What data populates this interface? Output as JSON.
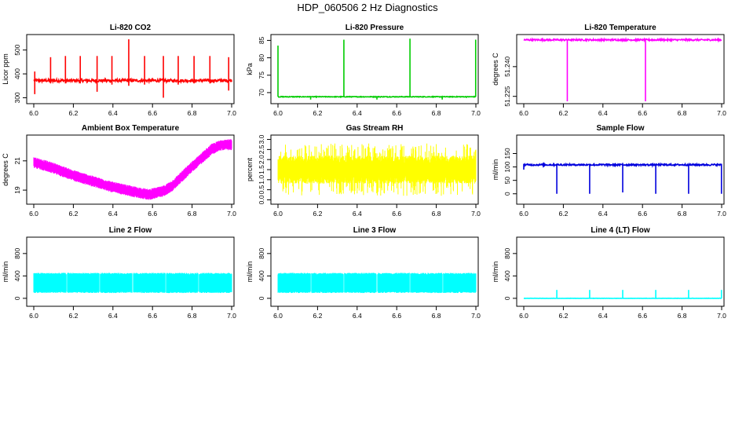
{
  "title": "HDP_060506  2 Hz Diagnostics",
  "chart_data": [
    {
      "type": "line",
      "title": "Li-820 CO2",
      "ylabel": "Licor ppm",
      "color": "#ff0000",
      "xlim": [
        6.0,
        7.0
      ],
      "ylim": [
        285,
        555
      ],
      "xticks": [
        6.0,
        6.2,
        6.4,
        6.6,
        6.8,
        7.0
      ],
      "xtick_labels": [
        "6.0",
        "6.2",
        "6.4",
        "6.6",
        "6.8",
        "7.0"
      ],
      "yticks": [
        300,
        400,
        500
      ],
      "ytick_labels": [
        "300",
        "400",
        "500"
      ],
      "baseline": 372,
      "noise": 6,
      "spikes": [
        {
          "x": 6.005,
          "low": 315,
          "high": 410
        },
        {
          "x": 6.085,
          "low": 360,
          "high": 470
        },
        {
          "x": 6.16,
          "low": 360,
          "high": 475
        },
        {
          "x": 6.235,
          "low": 360,
          "high": 475
        },
        {
          "x": 6.32,
          "low": 325,
          "high": 475
        },
        {
          "x": 6.395,
          "low": 355,
          "high": 475
        },
        {
          "x": 6.48,
          "low": 350,
          "high": 545
        },
        {
          "x": 6.56,
          "low": 355,
          "high": 475
        },
        {
          "x": 6.655,
          "low": 300,
          "high": 475
        },
        {
          "x": 6.73,
          "low": 355,
          "high": 475
        },
        {
          "x": 6.81,
          "low": 360,
          "high": 475
        },
        {
          "x": 6.89,
          "low": 360,
          "high": 475
        },
        {
          "x": 6.985,
          "low": 330,
          "high": 470
        }
      ]
    },
    {
      "type": "line",
      "title": "Li-820 Pressure",
      "ylabel": "kPa",
      "color": "#00cc00",
      "xlim": [
        6.0,
        7.0
      ],
      "ylim": [
        67.5,
        86
      ],
      "xticks": [
        6.0,
        6.2,
        6.4,
        6.6,
        6.8,
        7.0
      ],
      "xtick_labels": [
        "6.0",
        "6.2",
        "6.4",
        "6.6",
        "6.8",
        "7.0"
      ],
      "yticks": [
        70,
        75,
        80,
        85
      ],
      "ytick_labels": [
        "70",
        "75",
        "80",
        "85"
      ],
      "baseline": 68.8,
      "noise": 0.1,
      "spikes": [
        {
          "x": 6.0,
          "low": 68.8,
          "high": 83.5
        },
        {
          "x": 6.333,
          "low": 68.8,
          "high": 85.2
        },
        {
          "x": 6.667,
          "low": 68.8,
          "high": 85.5
        },
        {
          "x": 6.999,
          "low": 68.8,
          "high": 85.2
        },
        {
          "x": 6.165,
          "low": 68.0,
          "high": 68.8
        },
        {
          "x": 6.5,
          "low": 68.0,
          "high": 68.8
        },
        {
          "x": 6.83,
          "low": 68.0,
          "high": 68.8
        }
      ]
    },
    {
      "type": "line",
      "title": "Li-820 Temperature",
      "ylabel": "degrees C",
      "color": "#ff00ff",
      "xlim": [
        6.0,
        7.0
      ],
      "ylim": [
        51.2225,
        51.255
      ],
      "xticks": [
        6.0,
        6.2,
        6.4,
        6.6,
        6.8,
        7.0
      ],
      "xtick_labels": [
        "6.0",
        "6.2",
        "6.4",
        "6.6",
        "6.8",
        "7.0"
      ],
      "yticks": [
        51.225,
        51.24
      ],
      "ytick_labels": [
        "51.225",
        "51.240"
      ],
      "baseline": 51.2535,
      "noise": 0.0004,
      "spikes": [
        {
          "x": 6.22,
          "low": 51.2225,
          "high": 51.2535
        },
        {
          "x": 6.615,
          "low": 51.2225,
          "high": 51.2535
        }
      ]
    },
    {
      "type": "line",
      "title": "Ambient Box Temperature",
      "ylabel": "degrees C",
      "color": "#ff00ff",
      "xlim": [
        6.0,
        7.0
      ],
      "ylim": [
        18.2,
        22.6
      ],
      "xticks": [
        6.0,
        6.2,
        6.4,
        6.6,
        6.8,
        7.0
      ],
      "xtick_labels": [
        "6.0",
        "6.2",
        "6.4",
        "6.6",
        "6.8",
        "7.0"
      ],
      "yticks": [
        19,
        21
      ],
      "ytick_labels": [
        "19",
        "21"
      ],
      "trend_x": [
        6.0,
        6.1,
        6.2,
        6.3,
        6.4,
        6.5,
        6.58,
        6.65,
        6.7,
        6.8,
        6.9,
        6.95,
        7.0
      ],
      "trend_y": [
        20.9,
        20.5,
        20.0,
        19.6,
        19.2,
        18.9,
        18.7,
        18.9,
        19.3,
        20.6,
        21.8,
        22.1,
        22.1
      ],
      "band": 0.45
    },
    {
      "type": "line",
      "title": "Gas Stream RH",
      "ylabel": "percent",
      "color": "#ffff00",
      "xlim": [
        6.0,
        7.0
      ],
      "ylim": [
        -0.1,
        3.1
      ],
      "xticks": [
        6.0,
        6.2,
        6.4,
        6.6,
        6.8,
        7.0
      ],
      "xtick_labels": [
        "6.0",
        "6.2",
        "6.4",
        "6.6",
        "6.8",
        "7.0"
      ],
      "yticks": [
        0.0,
        0.5,
        1.0,
        1.5,
        2.0,
        2.5,
        3.0
      ],
      "ytick_labels": [
        "0.0",
        "0.5",
        "1.0",
        "1.5",
        "2.0",
        "2.5",
        "3.0"
      ],
      "center": 1.5,
      "band_low": 0.8,
      "band_high": 2.2,
      "extreme_low": 0.2,
      "extreme_high": 2.8
    },
    {
      "type": "line",
      "title": "Sample Flow",
      "ylabel": "ml/min",
      "color": "#0000dd",
      "xlim": [
        6.0,
        7.0
      ],
      "ylim": [
        -30,
        210
      ],
      "xticks": [
        6.0,
        6.2,
        6.4,
        6.6,
        6.8,
        7.0
      ],
      "xtick_labels": [
        "6.0",
        "6.2",
        "6.4",
        "6.6",
        "6.8",
        "7.0"
      ],
      "yticks": [
        0,
        50,
        100,
        150
      ],
      "ytick_labels": [
        "0",
        "50",
        "100",
        "150"
      ],
      "baseline": 108,
      "noise": 3,
      "spikes": [
        {
          "x": 6.0,
          "low": 90,
          "high": 112
        },
        {
          "x": 6.167,
          "low": 0,
          "high": 112
        },
        {
          "x": 6.333,
          "low": 0,
          "high": 112
        },
        {
          "x": 6.5,
          "low": 5,
          "high": 115
        },
        {
          "x": 6.667,
          "low": 0,
          "high": 112
        },
        {
          "x": 6.833,
          "low": 0,
          "high": 112
        },
        {
          "x": 6.999,
          "low": 0,
          "high": 112
        }
      ]
    },
    {
      "type": "line",
      "title": "Line 2 Flow",
      "ylabel": "ml/min",
      "color": "#00ffff",
      "xlim": [
        6.0,
        7.0
      ],
      "ylim": [
        -100,
        1050
      ],
      "xticks": [
        6.0,
        6.2,
        6.4,
        6.6,
        6.8,
        7.0
      ],
      "xtick_labels": [
        "6.0",
        "6.2",
        "6.4",
        "6.6",
        "6.8",
        "7.0"
      ],
      "yticks": [
        0,
        400,
        800
      ],
      "ytick_labels": [
        "0",
        "400",
        "800"
      ],
      "band_low": 110,
      "band_high": 440,
      "gaps": [
        6.167,
        6.333,
        6.5,
        6.667,
        6.833
      ]
    },
    {
      "type": "line",
      "title": "Line 3 Flow",
      "ylabel": "ml/min",
      "color": "#00ffff",
      "xlim": [
        6.0,
        7.0
      ],
      "ylim": [
        -100,
        1050
      ],
      "xticks": [
        6.0,
        6.2,
        6.4,
        6.6,
        6.8,
        7.0
      ],
      "xtick_labels": [
        "6.0",
        "6.2",
        "6.4",
        "6.6",
        "6.8",
        "7.0"
      ],
      "yticks": [
        0,
        400,
        800
      ],
      "ytick_labels": [
        "0",
        "400",
        "800"
      ],
      "band_low": 110,
      "band_high": 440,
      "gaps": [
        6.167,
        6.333,
        6.5,
        6.667,
        6.833
      ]
    },
    {
      "type": "line",
      "title": "Line 4 (LT) Flow",
      "ylabel": "ml/min",
      "color": "#00ffff",
      "xlim": [
        6.0,
        7.0
      ],
      "ylim": [
        -100,
        1050
      ],
      "xticks": [
        6.0,
        6.2,
        6.4,
        6.6,
        6.8,
        7.0
      ],
      "xtick_labels": [
        "6.0",
        "6.2",
        "6.4",
        "6.6",
        "6.8",
        "7.0"
      ],
      "yticks": [
        0,
        400,
        800
      ],
      "ytick_labels": [
        "0",
        "400",
        "800"
      ],
      "baseline": 0,
      "noise": 2,
      "spikes": [
        {
          "x": 6.167,
          "low": 0,
          "high": 150
        },
        {
          "x": 6.333,
          "low": 0,
          "high": 150
        },
        {
          "x": 6.5,
          "low": 0,
          "high": 150
        },
        {
          "x": 6.667,
          "low": 0,
          "high": 150
        },
        {
          "x": 6.833,
          "low": 0,
          "high": 150
        },
        {
          "x": 6.999,
          "low": 0,
          "high": 150
        }
      ]
    }
  ]
}
